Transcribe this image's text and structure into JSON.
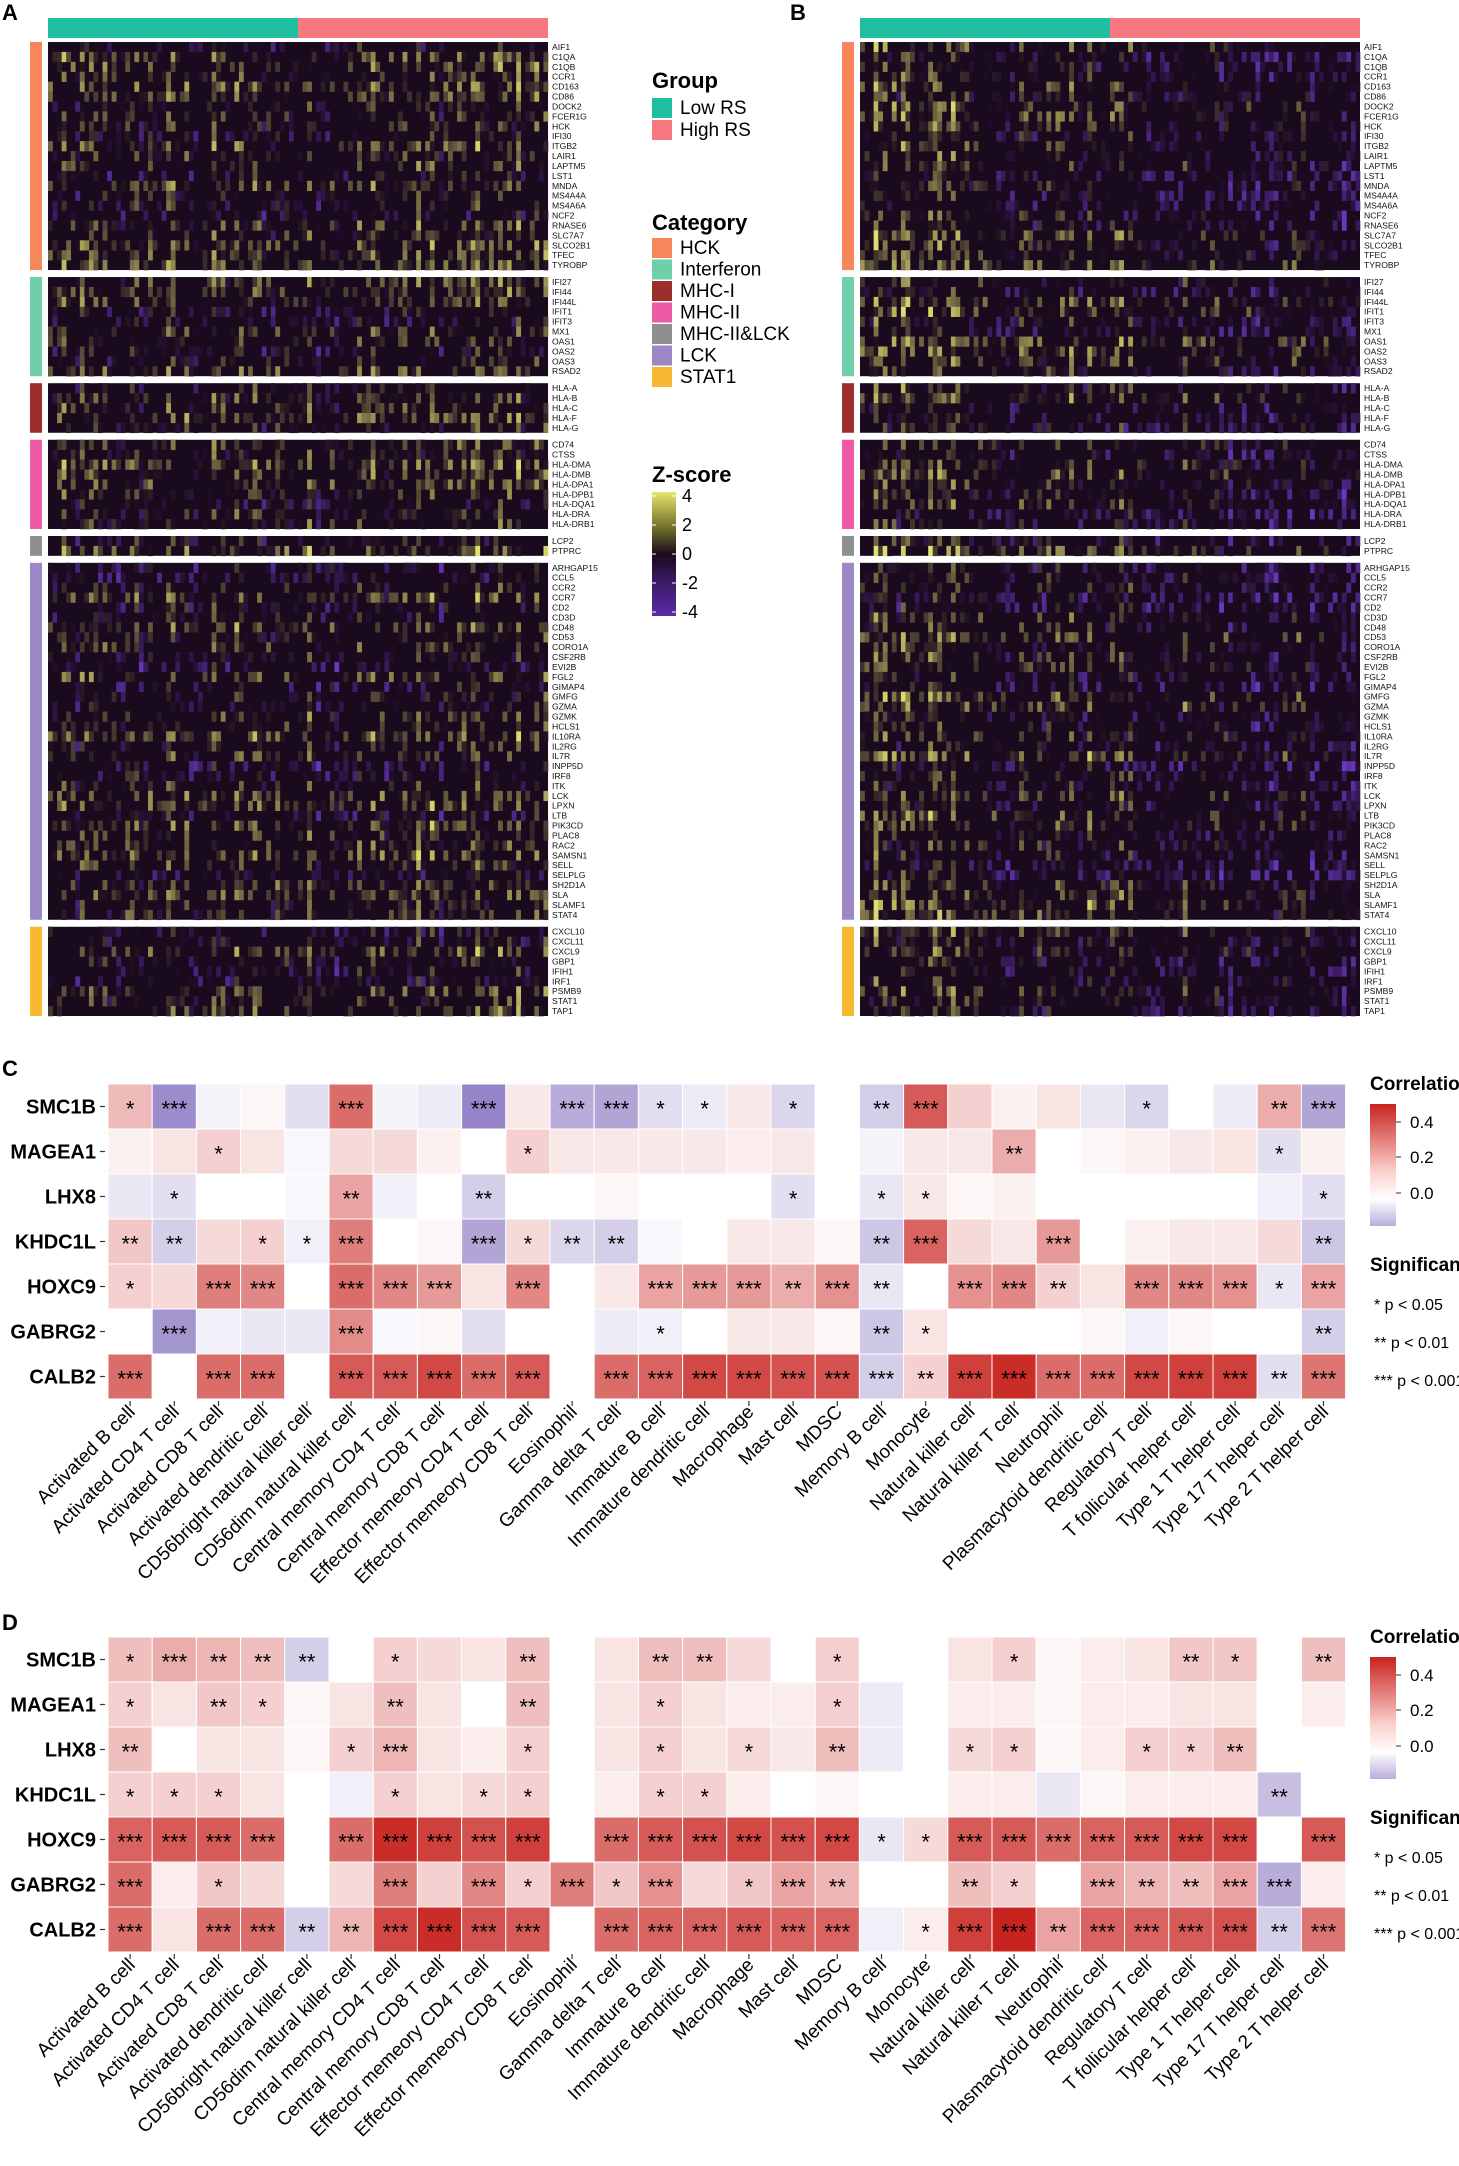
{
  "panel_labels": {
    "a": "A",
    "b": "B",
    "c": "C",
    "d": "D"
  },
  "colors": {
    "low_rs": "#1fbf9f",
    "high_rs": "#f7797f",
    "HCK": "#f7875a",
    "Interferon": "#6fcfa9",
    "MHC-I": "#9b2f2c",
    "MHC-II": "#ef5aa4",
    "MHC-II&LCK": "#8f8f8f",
    "LCK": "#9c88c6",
    "STAT1": "#f8b932",
    "corr_high": "#c8231f",
    "corr_mid": "#ffffff",
    "corr_low": "#8e7cc3",
    "z_high": "#e6e66a",
    "z_mid": "#1a0a1e",
    "z_low": "#5b2aa8"
  },
  "heatmap_legend": {
    "group_title": "Group",
    "groups": [
      "Low RS",
      "High RS"
    ],
    "category_title": "Category",
    "categories": [
      "HCK",
      "Interferon",
      "MHC-I",
      "MHC-II",
      "MHC-II&LCK",
      "LCK",
      "STAT1"
    ],
    "zscore_title": "Z-score",
    "zscore_ticks": [
      "4",
      "2",
      "0",
      "-2",
      "-4"
    ]
  },
  "gene_blocks": [
    {
      "category": "HCK",
      "genes": [
        "AIF1",
        "C1QA",
        "C1QB",
        "CCR1",
        "CD163",
        "CD86",
        "DOCK2",
        "FCER1G",
        "HCK",
        "IFI30",
        "ITGB2",
        "LAIR1",
        "LAPTM5",
        "LST1",
        "MNDA",
        "MS4A4A",
        "MS4A6A",
        "NCF2",
        "RNASE6",
        "SLC7A7",
        "SLCO2B1",
        "TFEC",
        "TYROBP"
      ]
    },
    {
      "category": "Interferon",
      "genes": [
        "IFI27",
        "IFI44",
        "IFI44L",
        "IFIT1",
        "IFIT3",
        "MX1",
        "OAS1",
        "OAS2",
        "OAS3",
        "RSAD2"
      ]
    },
    {
      "category": "MHC-I",
      "genes": [
        "HLA-A",
        "HLA-B",
        "HLA-C",
        "HLA-F",
        "HLA-G"
      ]
    },
    {
      "category": "MHC-II",
      "genes": [
        "CD74",
        "CTSS",
        "HLA-DMA",
        "HLA-DMB",
        "HLA-DPA1",
        "HLA-DPB1",
        "HLA-DQA1",
        "HLA-DRA",
        "HLA-DRB1"
      ]
    },
    {
      "category": "MHC-II&LCK",
      "genes": [
        "LCP2",
        "PTPRC"
      ]
    },
    {
      "category": "LCK",
      "genes": [
        "ARHGAP15",
        "CCL5",
        "CCR2",
        "CCR7",
        "CD2",
        "CD3D",
        "CD48",
        "CD53",
        "CORO1A",
        "CSF2RB",
        "EVI2B",
        "FGL2",
        "GIMAP4",
        "GMFG",
        "GZMA",
        "GZMK",
        "HCLS1",
        "IL10RA",
        "IL2RG",
        "IL7R",
        "INPP5D",
        "IRF8",
        "ITK",
        "LCK",
        "LPXN",
        "LTB",
        "PIK3CD",
        "PLAC8",
        "RAC2",
        "SAMSN1",
        "SELL",
        "SELPLG",
        "SH2D1A",
        "SLA",
        "SLAMF1",
        "STAT4"
      ]
    },
    {
      "category": "STAT1",
      "genes": [
        "CXCL10",
        "CXCL11",
        "CXCL9",
        "GBP1",
        "IFIH1",
        "IRF1",
        "PSMB9",
        "STAT1",
        "TAP1"
      ]
    }
  ],
  "corr_legend": {
    "title": "Correlation",
    "ticks": [
      "0.4",
      "0.2",
      "0.0"
    ],
    "sig_title": "Significant",
    "sig_items": [
      "* p < 0.05",
      "** p < 0.01",
      "*** p < 0.001"
    ]
  },
  "chart_data": [
    {
      "type": "heatmap",
      "panel": "A",
      "description_rows": "genes",
      "groups": [
        "Low RS",
        "High RS"
      ],
      "zlim": [
        -4,
        4
      ]
    },
    {
      "type": "heatmap",
      "panel": "B",
      "description_rows": "genes",
      "groups": [
        "Low RS",
        "High RS"
      ],
      "zlim": [
        -4,
        4
      ]
    },
    {
      "type": "heatmap",
      "panel": "C",
      "title": "",
      "rows": [
        "SMC1B",
        "MAGEA1",
        "LHX8",
        "KHDC1L",
        "HOXC9",
        "GABRG2",
        "CALB2"
      ],
      "columns": [
        "Activated B cell",
        "Activated CD4 T cell",
        "Activated CD8 T cell",
        "Activated dendritic cell",
        "CD56bright natural killer cell",
        "CD56dim natural killer cell",
        "Central memory CD4 T cell",
        "Central memory CD8 T cell",
        "Effector memeory CD4 T cell",
        "Effector memeory CD8 T cell",
        "Eosinophil",
        "Gamma delta T cell",
        "Immature  B cell",
        "Immature dendritic cell",
        "Macrophage",
        "Mast cell",
        "MDSC",
        "Memory B cell",
        "Monocyte",
        "Natural killer cell",
        "Natural killer T cell",
        "Neutrophil",
        "Plasmacytoid dendritic cell",
        "Regulatory T cell",
        "T follicular helper cell",
        "Type 1 T helper cell",
        "Type 17 T helper cell",
        "Type 2 T helper cell"
      ],
      "values": [
        [
          0.15,
          -0.28,
          -0.03,
          0.02,
          -0.08,
          0.32,
          -0.03,
          -0.05,
          -0.3,
          0.05,
          -0.2,
          -0.22,
          -0.08,
          -0.05,
          0.05,
          -0.1,
          0.0,
          -0.12,
          0.36,
          0.1,
          0.03,
          0.06,
          -0.06,
          -0.1,
          0.0,
          -0.05,
          0.18,
          -0.22
        ],
        [
          0.03,
          0.06,
          0.1,
          0.06,
          -0.02,
          0.08,
          0.08,
          0.03,
          0.0,
          0.1,
          0.05,
          0.05,
          0.05,
          0.05,
          0.04,
          0.05,
          0.0,
          -0.03,
          0.05,
          0.05,
          0.18,
          0.0,
          0.02,
          0.03,
          0.05,
          0.06,
          -0.08,
          0.03
        ],
        [
          -0.06,
          -0.08,
          0.0,
          0.0,
          -0.02,
          0.2,
          -0.04,
          0.0,
          -0.12,
          0.0,
          0.0,
          0.02,
          0.0,
          0.0,
          0.0,
          -0.08,
          0.0,
          -0.06,
          0.05,
          0.02,
          0.03,
          0.0,
          0.0,
          0.0,
          0.0,
          0.0,
          -0.04,
          -0.08
        ],
        [
          0.12,
          -0.12,
          0.08,
          0.1,
          -0.04,
          0.28,
          0.0,
          0.02,
          -0.22,
          0.08,
          -0.1,
          -0.12,
          -0.02,
          0.0,
          0.05,
          0.05,
          0.02,
          -0.14,
          0.34,
          0.08,
          0.05,
          0.22,
          0.0,
          0.03,
          0.05,
          0.05,
          0.08,
          -0.14
        ],
        [
          0.1,
          0.08,
          0.28,
          0.26,
          0.0,
          0.32,
          0.26,
          0.22,
          0.06,
          0.26,
          0.0,
          0.05,
          0.2,
          0.22,
          0.22,
          0.18,
          0.24,
          -0.06,
          0.0,
          0.24,
          0.26,
          0.1,
          0.06,
          0.26,
          0.26,
          0.24,
          -0.06,
          0.2
        ],
        [
          0.0,
          -0.26,
          -0.04,
          -0.06,
          -0.06,
          0.25,
          -0.02,
          0.02,
          -0.08,
          0.0,
          0.0,
          -0.05,
          -0.04,
          0.0,
          0.05,
          0.05,
          0.02,
          -0.14,
          0.06,
          0.0,
          0.0,
          0.0,
          0.02,
          -0.04,
          0.02,
          0.0,
          0.0,
          -0.12
        ],
        [
          0.32,
          0.0,
          0.32,
          0.32,
          0.0,
          0.36,
          0.36,
          0.4,
          0.32,
          0.36,
          0.0,
          0.32,
          0.34,
          0.4,
          0.4,
          0.38,
          0.38,
          -0.12,
          0.1,
          0.42,
          0.46,
          0.32,
          0.32,
          0.4,
          0.42,
          0.42,
          -0.08,
          0.3
        ]
      ],
      "significance": [
        [
          "*",
          "***",
          "",
          "",
          "",
          "***",
          "",
          "",
          "***",
          "",
          "***",
          "***",
          "*",
          "*",
          "",
          "*",
          "",
          "**",
          "***",
          "",
          "",
          "",
          "",
          "*",
          "",
          "",
          "**",
          "***"
        ],
        [
          "",
          "",
          "*",
          "",
          "",
          "",
          "",
          "",
          "",
          "*",
          "",
          "",
          "",
          "",
          "",
          "",
          "",
          "",
          "",
          "",
          "**",
          "",
          "",
          "",
          "",
          "",
          "*",
          ""
        ],
        [
          "",
          "*",
          "",
          "",
          "",
          "**",
          "",
          "",
          "**",
          "",
          "",
          "",
          "",
          "",
          "",
          "*",
          "",
          "*",
          "*",
          "",
          "",
          "",
          "",
          "",
          "",
          "",
          "",
          "*"
        ],
        [
          "**",
          "**",
          "",
          "*",
          "*",
          "***",
          "",
          "",
          "***",
          "*",
          "**",
          "**",
          "",
          "",
          "",
          "",
          "",
          "**",
          "***",
          "",
          "",
          "***",
          "",
          "",
          "",
          "",
          "",
          "**"
        ],
        [
          "*",
          "",
          "***",
          "***",
          "",
          "***",
          "***",
          "***",
          "",
          "***",
          "",
          "",
          "***",
          "***",
          "***",
          "**",
          "***",
          "**",
          "",
          "***",
          "***",
          "**",
          "",
          "***",
          "***",
          "***",
          "*",
          "***"
        ],
        [
          "",
          "***",
          "",
          "",
          "",
          "***",
          "",
          "",
          "",
          "",
          "",
          "",
          "*",
          "",
          "",
          "",
          "",
          "**",
          "*",
          "",
          "",
          "",
          "",
          "",
          "",
          "",
          "",
          "**"
        ],
        [
          "***",
          "",
          "***",
          "***",
          "",
          "***",
          "***",
          "***",
          "***",
          "***",
          "",
          "***",
          "***",
          "***",
          "***",
          "***",
          "***",
          "***",
          "**",
          "***",
          "***",
          "***",
          "***",
          "***",
          "***",
          "***",
          "**",
          "***"
        ]
      ],
      "legend": {
        "title": "Correlation",
        "ticks": [
          0.4,
          0.2,
          0.0
        ]
      }
    },
    {
      "type": "heatmap",
      "panel": "D",
      "title": "",
      "rows": [
        "SMC1B",
        "MAGEA1",
        "LHX8",
        "KHDC1L",
        "HOXC9",
        "GABRG2",
        "CALB2"
      ],
      "columns": [
        "Activated B cell",
        "Activated CD4 T cell",
        "Activated CD8 T cell",
        "Activated dendritic cell",
        "CD56bright natural killer cell",
        "CD56dim natural killer cell",
        "Central memory CD4 T cell",
        "Central memory CD8 T cell",
        "Effector memeory CD4 T cell",
        "Effector memeory CD8 T cell",
        "Eosinophil",
        "Gamma delta T cell",
        "Immature  B cell",
        "Immature dendritic cell",
        "Macrophage",
        "Mast cell",
        "MDSC",
        "Memory B cell",
        "Monocyte",
        "Natural killer cell",
        "Natural killer T cell",
        "Neutrophil",
        "Plasmacytoid dendritic cell",
        "Regulatory T cell",
        "T follicular helper cell",
        "Type 1 T helper cell",
        "Type 17 T helper cell",
        "Type 2 T helper cell"
      ],
      "values": [
        [
          0.14,
          0.18,
          0.16,
          0.14,
          -0.12,
          0.0,
          0.1,
          0.08,
          0.06,
          0.14,
          0.0,
          0.06,
          0.14,
          0.14,
          0.08,
          0.0,
          0.1,
          0.0,
          0.0,
          0.06,
          0.1,
          0.02,
          0.04,
          0.06,
          0.12,
          0.12,
          0.0,
          0.14
        ],
        [
          0.1,
          0.06,
          0.12,
          0.1,
          0.02,
          0.06,
          0.14,
          0.06,
          0.0,
          0.14,
          0.0,
          0.06,
          0.1,
          0.06,
          0.04,
          0.04,
          0.1,
          -0.05,
          0.0,
          0.04,
          0.04,
          0.02,
          0.04,
          0.04,
          0.06,
          0.06,
          0.0,
          0.04
        ],
        [
          0.14,
          0.0,
          0.06,
          0.06,
          0.02,
          0.1,
          0.16,
          0.06,
          0.04,
          0.1,
          0.0,
          0.06,
          0.1,
          0.06,
          0.08,
          0.05,
          0.14,
          -0.05,
          0.0,
          0.08,
          0.1,
          0.02,
          0.04,
          0.1,
          0.1,
          0.14,
          0.0,
          0.0
        ],
        [
          0.1,
          0.1,
          0.1,
          0.06,
          0.0,
          -0.04,
          0.1,
          0.06,
          0.08,
          0.1,
          0.0,
          0.04,
          0.1,
          0.1,
          0.04,
          0.0,
          0.02,
          0.0,
          0.0,
          0.04,
          0.04,
          -0.06,
          0.02,
          0.04,
          0.04,
          0.04,
          -0.16,
          0.0
        ],
        [
          0.34,
          0.36,
          0.36,
          0.32,
          0.0,
          0.32,
          0.46,
          0.42,
          0.38,
          0.42,
          0.0,
          0.32,
          0.36,
          0.38,
          0.4,
          0.38,
          0.4,
          -0.06,
          0.08,
          0.36,
          0.36,
          0.32,
          0.34,
          0.36,
          0.4,
          0.4,
          0.0,
          0.36
        ],
        [
          0.32,
          0.04,
          0.12,
          0.08,
          0.0,
          0.08,
          0.28,
          0.1,
          0.26,
          0.1,
          0.28,
          0.12,
          0.24,
          0.08,
          0.12,
          0.2,
          0.16,
          0.0,
          0.0,
          0.14,
          0.1,
          0.0,
          0.2,
          0.16,
          0.14,
          0.2,
          -0.2,
          0.04
        ],
        [
          0.32,
          0.06,
          0.32,
          0.32,
          -0.12,
          0.16,
          0.4,
          0.46,
          0.38,
          0.36,
          0.0,
          0.32,
          0.34,
          0.34,
          0.36,
          0.34,
          0.34,
          -0.04,
          0.04,
          0.42,
          0.48,
          0.2,
          0.34,
          0.34,
          0.36,
          0.38,
          -0.12,
          0.3
        ]
      ],
      "significance": [
        [
          "*",
          "***",
          "**",
          "**",
          "**",
          "",
          "*",
          "",
          "",
          "**",
          "",
          "",
          "**",
          "**",
          "",
          "",
          "*",
          "",
          "",
          "",
          "*",
          "",
          "",
          "",
          "**",
          "*",
          "",
          "**"
        ],
        [
          "*",
          "",
          "**",
          "*",
          "",
          "",
          "**",
          "",
          "",
          "**",
          "",
          "",
          "*",
          "",
          "",
          "",
          "*",
          "",
          "",
          "",
          "",
          "",
          "",
          "",
          "",
          "",
          "",
          ""
        ],
        [
          "**",
          "",
          "",
          "",
          "",
          "*",
          "***",
          "",
          "",
          "*",
          "",
          "",
          "*",
          "",
          "*",
          "",
          "**",
          "",
          "",
          "*",
          "*",
          "",
          "",
          "*",
          "*",
          "**",
          "",
          ""
        ],
        [
          "*",
          "*",
          "*",
          "",
          "",
          "",
          "*",
          "",
          "*",
          "*",
          "",
          "",
          "*",
          "*",
          "",
          "",
          "",
          "",
          "",
          "",
          "",
          "",
          "",
          "",
          "",
          "",
          "**",
          ""
        ],
        [
          "***",
          "***",
          "***",
          "***",
          "",
          "***",
          "***",
          "***",
          "***",
          "***",
          "",
          "***",
          "***",
          "***",
          "***",
          "***",
          "***",
          "*",
          "*",
          "***",
          "***",
          "***",
          "***",
          "***",
          "***",
          "***",
          "",
          "***"
        ],
        [
          "***",
          "",
          "*",
          "",
          "",
          "",
          "***",
          "",
          "***",
          "*",
          "***",
          "*",
          "***",
          "",
          "*",
          "***",
          "**",
          "",
          "",
          "**",
          "*",
          "",
          "***",
          "**",
          "**",
          "***",
          "***",
          ""
        ],
        [
          "***",
          "",
          "***",
          "***",
          "**",
          "**",
          "***",
          "***",
          "***",
          "***",
          "",
          "***",
          "***",
          "***",
          "***",
          "***",
          "***",
          "",
          "*",
          "***",
          "***",
          "**",
          "***",
          "***",
          "***",
          "***",
          "**",
          "***"
        ]
      ],
      "legend": {
        "title": "Correlation",
        "ticks": [
          0.4,
          0.2,
          0.0
        ]
      }
    }
  ]
}
